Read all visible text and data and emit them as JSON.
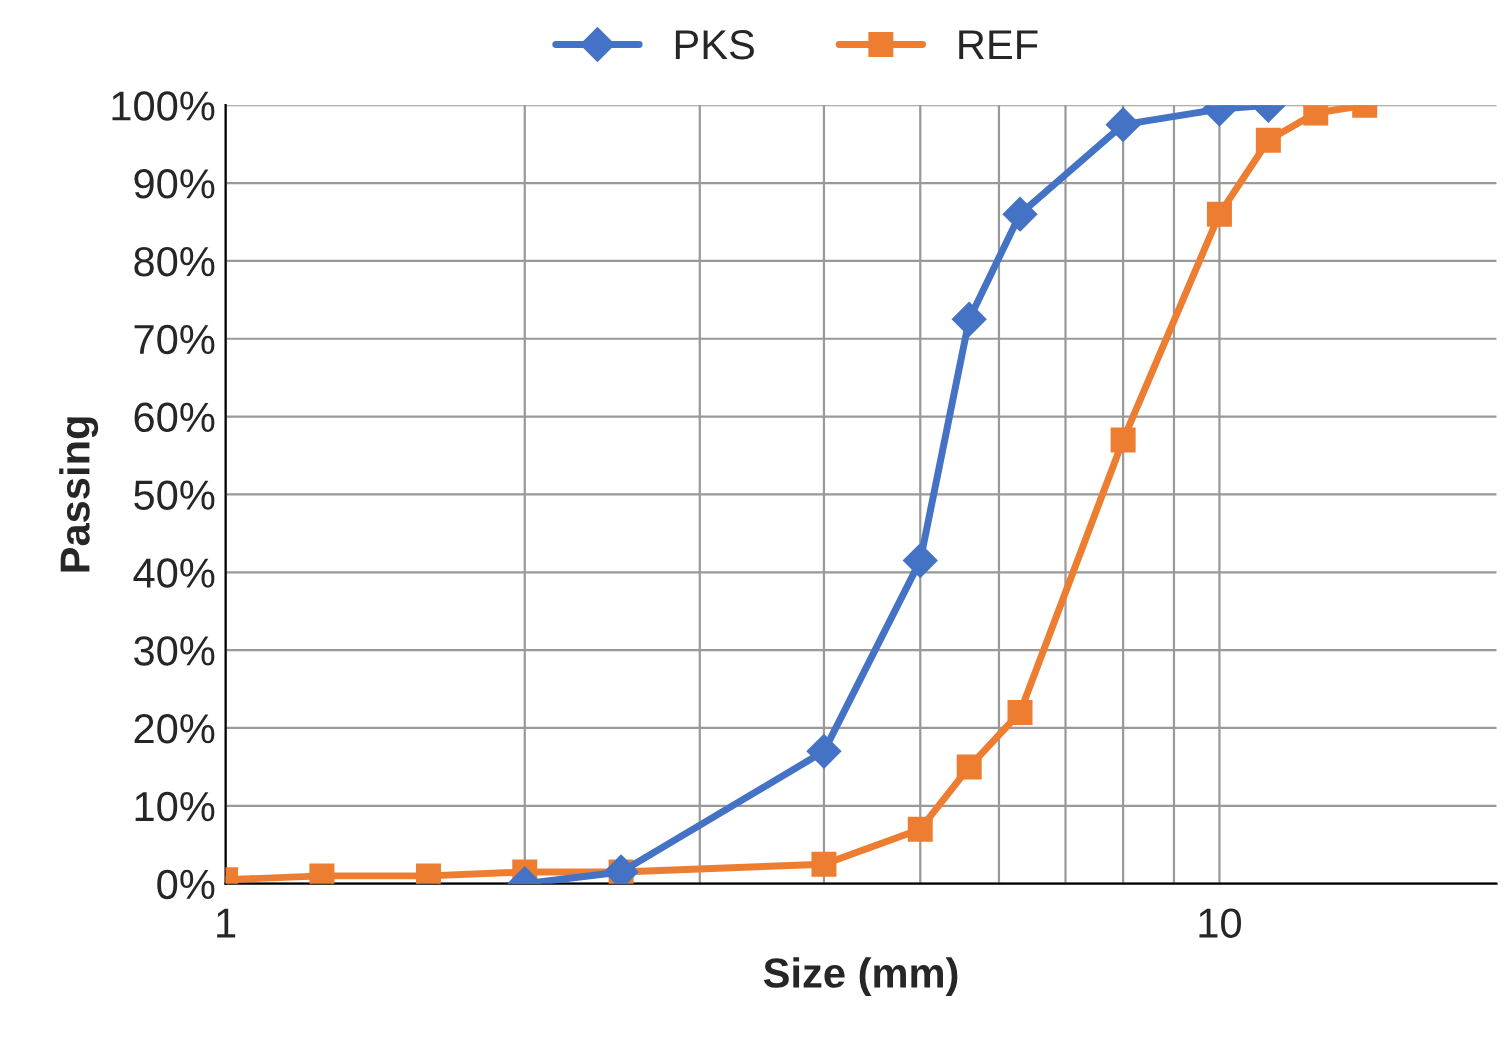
{
  "chart_data": {
    "type": "line",
    "xlabel": "Size (mm)",
    "ylabel": "Passing",
    "log": "x",
    "grid": true,
    "legend": "top",
    "xlim": [
      1,
      19
    ],
    "xticks": [
      1,
      {
        "value": 2,
        "label": null
      },
      {
        "value": 3,
        "label": null
      },
      {
        "value": 4,
        "label": null
      },
      {
        "value": 5,
        "label": null
      },
      {
        "value": 6,
        "label": null
      },
      {
        "value": 7,
        "label": null
      },
      {
        "value": 8,
        "label": null
      },
      {
        "value": 9,
        "label": null
      },
      10
    ],
    "ylim": [
      0,
      100
    ],
    "yticks": [
      {
        "value": 0,
        "label": "0%"
      },
      {
        "value": 10,
        "label": "10%"
      },
      {
        "value": 20,
        "label": "20%"
      },
      {
        "value": 30,
        "label": "30%"
      },
      {
        "value": 40,
        "label": "40%"
      },
      {
        "value": 50,
        "label": "50%"
      },
      {
        "value": 60,
        "label": "60%"
      },
      {
        "value": 70,
        "label": "70%"
      },
      {
        "value": 80,
        "label": "80%"
      },
      {
        "value": 90,
        "label": "90%"
      },
      {
        "value": 100,
        "label": "100%"
      }
    ],
    "series": [
      {
        "name": "PKS",
        "color": "#4472c4",
        "marker": "diamond",
        "x": [
          2,
          2.5,
          4,
          5,
          5.6,
          6.3,
          8,
          10,
          11.2
        ],
        "values": [
          0,
          1.5,
          17,
          41.5,
          72.5,
          86,
          97.5,
          99.5,
          100
        ]
      },
      {
        "name": "REF",
        "color": "#ed7d31",
        "marker": "square",
        "x": [
          1,
          1.25,
          1.6,
          2,
          2.5,
          4,
          5,
          5.6,
          6.3,
          8,
          10,
          11.2,
          12.5,
          14
        ],
        "values": [
          0.5,
          1,
          1,
          1.5,
          1.5,
          2.5,
          7,
          15,
          22,
          57,
          86,
          95.5,
          99,
          100
        ]
      }
    ]
  }
}
